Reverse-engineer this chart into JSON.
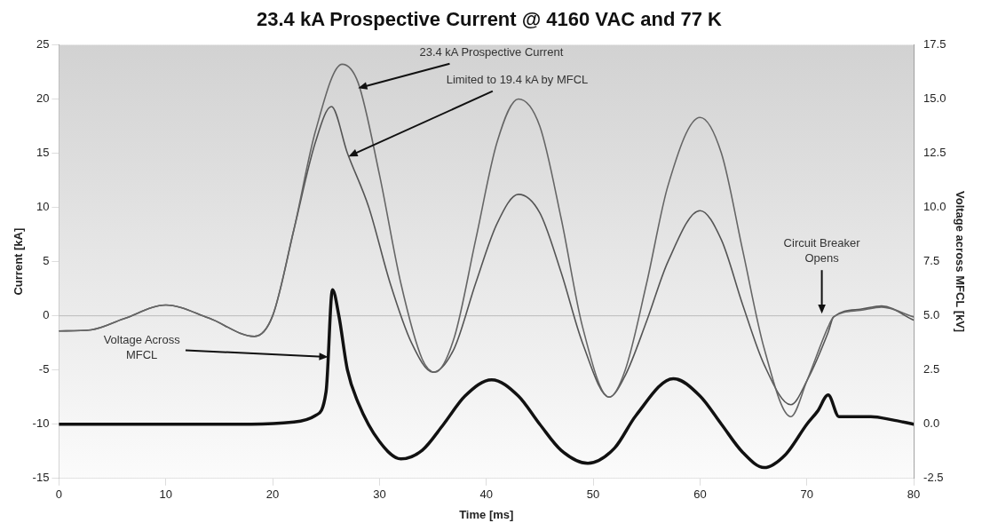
{
  "chart_data": {
    "type": "line",
    "title": "23.4 kA Prospective Current @ 4160 VAC and 77 K",
    "xlabel": "Time [ms]",
    "ylabel": "Current [kA]",
    "y2label": "Voltage across MFCL [kV]",
    "xlim": [
      0,
      80
    ],
    "xticks": [
      0,
      10,
      20,
      30,
      40,
      50,
      60,
      70,
      80
    ],
    "ylim": [
      -15,
      25
    ],
    "yticks": [
      -15,
      -10,
      -5,
      0,
      5,
      10,
      15,
      20,
      25
    ],
    "y2lim": [
      -2.5,
      17.5
    ],
    "y2ticks": [
      {
        "value": -2.5,
        "label": "-2.5"
      },
      {
        "value": 0,
        "label": "0.0"
      },
      {
        "value": 2.5,
        "label": "2.5"
      },
      {
        "value": 5,
        "label": "5.0"
      },
      {
        "value": 7.5,
        "label": "7.5"
      },
      {
        "value": 10,
        "label": "10.0"
      },
      {
        "value": 12.5,
        "label": "12.5"
      },
      {
        "value": 15,
        "label": "15.0"
      },
      {
        "value": 17.5,
        "label": "17.5"
      }
    ],
    "grid": false,
    "legend": false,
    "marker": "none",
    "line_style": "solid",
    "ref_lines": [
      {
        "axis": "y",
        "value": 0,
        "color": "#bbbbbb"
      }
    ],
    "series": [
      {
        "color": "#666666",
        "x": [
          0,
          3,
          6,
          10,
          14,
          18.3,
          20,
          22,
          24,
          26.5,
          28,
          30,
          32,
          34,
          35.2,
          37,
          39,
          41,
          43,
          45,
          47,
          49,
          51.5,
          53,
          55,
          57,
          60,
          62,
          64,
          66,
          68.5,
          70,
          72,
          72.5,
          75,
          77,
          80
        ],
        "values": [
          -1.4,
          -1.3,
          -0.3,
          1.0,
          -0.2,
          -1.9,
          0,
          8,
          17,
          23.2,
          21.5,
          13,
          3,
          -4,
          -5.2,
          -2,
          7,
          16,
          20.0,
          17.5,
          9,
          -1,
          -7.5,
          -5,
          3,
          12,
          18.3,
          15,
          6,
          -3,
          -9.3,
          -6,
          -1,
          -0.1,
          0.5,
          0.8,
          -0.1
        ]
      },
      {
        "color": "#555555",
        "x": [
          0,
          3,
          6,
          10,
          14,
          18.3,
          20,
          22,
          24,
          25.5,
          27,
          29,
          31,
          33,
          35,
          37,
          39,
          41,
          43,
          45,
          47,
          49,
          51.5,
          53,
          55,
          57,
          60,
          62,
          64,
          66,
          68.5,
          70,
          72,
          72.5,
          75,
          77,
          80
        ],
        "values": [
          -1.4,
          -1.3,
          -0.3,
          1.0,
          -0.2,
          -1.9,
          0,
          8,
          16,
          19.3,
          15,
          10,
          3,
          -2.5,
          -5.2,
          -3,
          3,
          8.5,
          11.2,
          9.5,
          4,
          -2.5,
          -7.5,
          -5.5,
          -0.5,
          5,
          9.7,
          7,
          1,
          -4.5,
          -8.2,
          -6,
          -1.5,
          -0.1,
          0.6,
          0.9,
          -0.4
        ]
      },
      {
        "color": "#111111",
        "axis": "y2",
        "x": [
          0,
          5,
          10,
          15,
          18,
          22,
          24,
          25,
          25.6,
          26.2,
          27,
          28,
          30,
          32,
          34,
          36,
          38,
          40.5,
          43,
          45,
          47,
          49.5,
          52,
          54,
          57.5,
          60,
          62,
          64,
          66,
          68,
          70,
          71,
          72,
          73,
          76,
          78,
          80
        ],
        "values": [
          0,
          0,
          0,
          0,
          0,
          0.1,
          0.4,
          1.5,
          6.2,
          5,
          2.5,
          1,
          -0.8,
          -1.6,
          -1.2,
          0,
          1.3,
          2.05,
          1.3,
          0,
          -1.2,
          -1.8,
          -1.1,
          0.4,
          2.1,
          1.3,
          0,
          -1.3,
          -2.0,
          -1.4,
          0,
          0.6,
          1.35,
          0.35,
          0.35,
          0.2,
          0
        ]
      }
    ],
    "annotations": [
      {
        "text": "23.4 kA Prospective Current",
        "x": 28,
        "y": 21
      },
      {
        "text": "Limited to 19.4 kA by MFCL",
        "x": 27.1,
        "y": 14.7
      },
      {
        "text": "Voltage Across MFCL",
        "x": 25.2,
        "y": -3.8
      },
      {
        "text": "Circuit Breaker Opens",
        "x": 71.4,
        "y": 0.2
      }
    ]
  }
}
